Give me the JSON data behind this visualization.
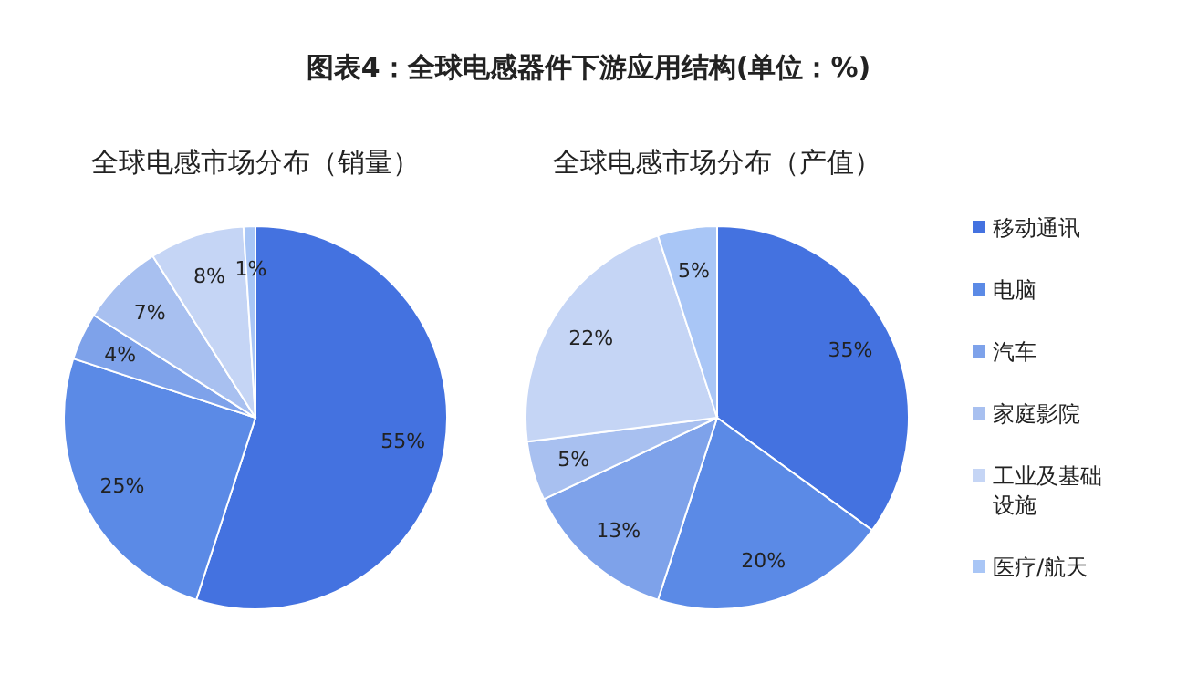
{
  "chart_data": [
    {
      "type": "pie",
      "title": "图表4：全球电感器件下游应用结构(单位：%)",
      "subtitle": "全球电感市场分布（销量）",
      "categories": [
        null,
        null,
        null,
        null,
        null,
        null
      ],
      "values": [
        55,
        25,
        4,
        7,
        8,
        1
      ],
      "value_labels": [
        "55%",
        "25%",
        "4%",
        "7%",
        "8%",
        "1%"
      ],
      "colors": [
        "#4472e0",
        "#5b8ae6",
        "#7ea2ea",
        "#a8c0f0",
        "#c5d5f5",
        "#a9c6f6"
      ]
    },
    {
      "type": "pie",
      "subtitle": "全球电感市场分布（产值）",
      "categories": [
        "移动通讯",
        "电脑",
        "汽车",
        "家庭影院",
        "工业及基础设施",
        "医疗/航天"
      ],
      "values": [
        35,
        20,
        13,
        5,
        22,
        5
      ],
      "value_labels": [
        "35%",
        "20%",
        "13%",
        "5%",
        "22%",
        "5%"
      ],
      "colors": [
        "#4472e0",
        "#5b8ae6",
        "#7ea2ea",
        "#a8c0f0",
        "#c5d5f5",
        "#a9c6f6"
      ],
      "legend": "right"
    }
  ]
}
